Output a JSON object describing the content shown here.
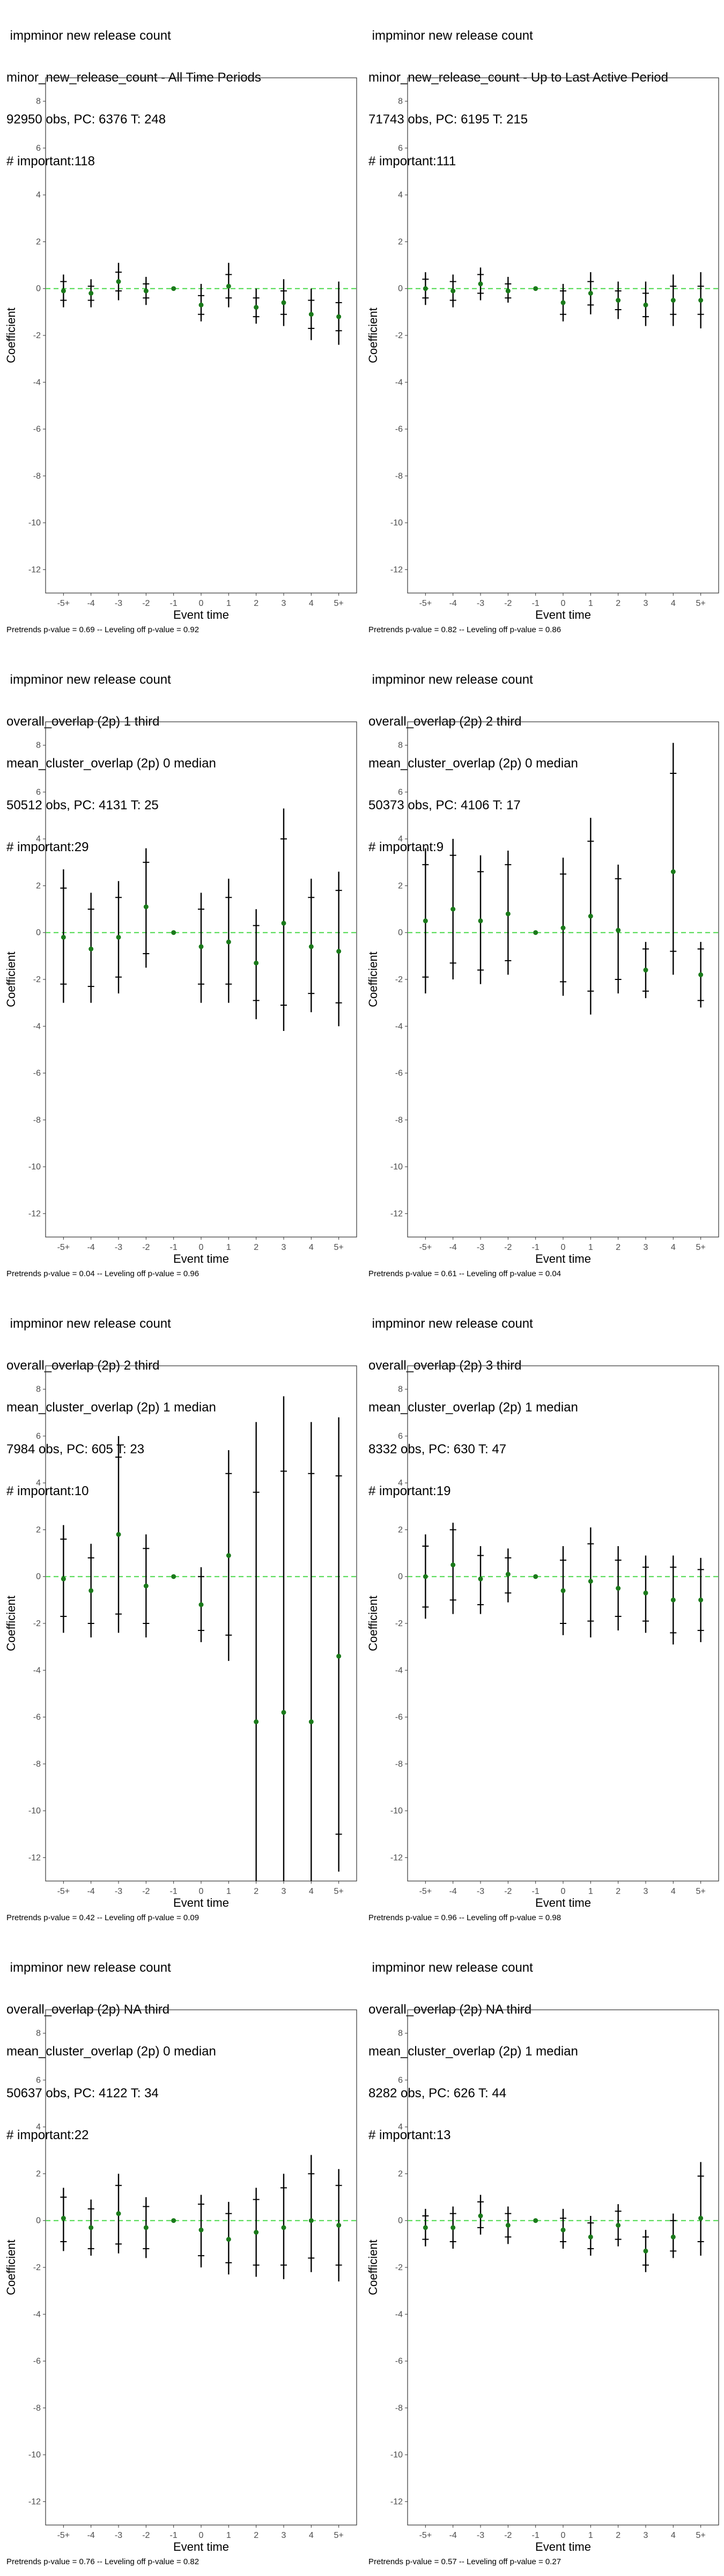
{
  "chart_data": [
    {
      "type": "scatter",
      "title_lines": [
        " impminor new release count",
        "minor_new_release_count - All Time Periods",
        "92950 obs, PC: 6376 T: 248",
        "# important:118"
      ],
      "xlabel": "Event time",
      "ylabel": "Coefficient",
      "categories": [
        "-5+",
        "-4",
        "-3",
        "-2",
        "-1",
        "0",
        "1",
        "2",
        "3",
        "4",
        "5+"
      ],
      "ylim": [
        -13,
        9
      ],
      "yticks": [
        8,
        6,
        4,
        2,
        0,
        -2,
        -4,
        -6,
        -8,
        -10,
        -12
      ],
      "reference_line": 0,
      "series": [
        {
          "estimate": [
            -0.1,
            -0.2,
            0.3,
            -0.1,
            0.0,
            -0.7,
            0.1,
            -0.8,
            -0.6,
            -1.1,
            -1.2
          ],
          "ci_low": [
            -0.8,
            -0.8,
            -0.5,
            -0.7,
            null,
            -1.4,
            -0.8,
            -1.5,
            -1.6,
            -2.2,
            -2.4
          ],
          "ci_high": [
            0.6,
            0.4,
            1.1,
            0.5,
            null,
            0.2,
            1.1,
            0.0,
            0.4,
            0.0,
            0.3
          ],
          "ci_inner_low": [
            -0.5,
            -0.5,
            -0.1,
            -0.4,
            null,
            -1.1,
            -0.4,
            -1.2,
            -1.1,
            -1.7,
            -1.8
          ],
          "ci_inner_high": [
            0.3,
            0.1,
            0.7,
            0.2,
            null,
            -0.3,
            0.6,
            -0.4,
            -0.1,
            -0.5,
            -0.6
          ]
        }
      ],
      "footnote": "Pretrends p-value = 0.69 -- Leveling off p-value = 0.92"
    },
    {
      "type": "scatter",
      "title_lines": [
        " impminor new release count",
        "minor_new_release_count - Up to Last Active Period",
        "71743 obs, PC: 6195 T: 215",
        "# important:111"
      ],
      "xlabel": "Event time",
      "ylabel": "Coefficient",
      "categories": [
        "-5+",
        "-4",
        "-3",
        "-2",
        "-1",
        "0",
        "1",
        "2",
        "3",
        "4",
        "5+"
      ],
      "ylim": [
        -13,
        9
      ],
      "yticks": [
        8,
        6,
        4,
        2,
        0,
        -2,
        -4,
        -6,
        -8,
        -10,
        -12
      ],
      "reference_line": 0,
      "series": [
        {
          "estimate": [
            0.0,
            -0.1,
            0.2,
            -0.1,
            0.0,
            -0.6,
            -0.2,
            -0.5,
            -0.7,
            -0.5,
            -0.5
          ],
          "ci_low": [
            -0.7,
            -0.8,
            -0.5,
            -0.6,
            null,
            -1.4,
            -1.1,
            -1.3,
            -1.6,
            -1.6,
            -1.7
          ],
          "ci_high": [
            0.7,
            0.6,
            0.9,
            0.5,
            null,
            0.2,
            0.7,
            0.3,
            0.3,
            0.6,
            0.7
          ],
          "ci_inner_low": [
            -0.4,
            -0.5,
            -0.2,
            -0.4,
            null,
            -1.1,
            -0.7,
            -0.9,
            -1.2,
            -1.1,
            -1.1
          ],
          "ci_inner_high": [
            0.4,
            0.3,
            0.6,
            0.2,
            null,
            -0.1,
            0.3,
            -0.1,
            -0.2,
            0.1,
            0.1
          ]
        }
      ],
      "footnote": "Pretrends p-value = 0.82 -- Leveling off p-value = 0.86"
    },
    {
      "type": "scatter",
      "title_lines": [
        " impminor new release count",
        "overall_overlap (2p) 1 third",
        "mean_cluster_overlap (2p) 0 median",
        "50512 obs, PC: 4131 T: 25",
        "# important:29"
      ],
      "xlabel": "Event time",
      "ylabel": "Coefficient",
      "categories": [
        "-5+",
        "-4",
        "-3",
        "-2",
        "-1",
        "0",
        "1",
        "2",
        "3",
        "4",
        "5+"
      ],
      "ylim": [
        -13,
        9
      ],
      "yticks": [
        8,
        6,
        4,
        2,
        0,
        -2,
        -4,
        -6,
        -8,
        -10,
        -12
      ],
      "reference_line": 0,
      "series": [
        {
          "estimate": [
            -0.2,
            -0.7,
            -0.2,
            1.1,
            0.0,
            -0.6,
            -0.4,
            -1.3,
            0.4,
            -0.6,
            -0.8
          ],
          "ci_low": [
            -3.0,
            -3.0,
            -2.6,
            -1.5,
            null,
            -3.0,
            -3.0,
            -3.7,
            -4.2,
            -3.4,
            -4.0
          ],
          "ci_high": [
            2.7,
            1.7,
            2.2,
            3.6,
            null,
            1.7,
            2.3,
            1.0,
            5.3,
            2.3,
            2.6
          ],
          "ci_inner_low": [
            -2.2,
            -2.3,
            -1.9,
            -0.9,
            null,
            -2.2,
            -2.2,
            -2.9,
            -3.1,
            -2.6,
            -3.0
          ],
          "ci_inner_high": [
            1.9,
            1.0,
            1.5,
            3.0,
            null,
            1.0,
            1.5,
            0.3,
            4.0,
            1.5,
            1.8
          ]
        }
      ],
      "footnote": "Pretrends p-value = 0.04 -- Leveling off p-value = 0.96"
    },
    {
      "type": "scatter",
      "title_lines": [
        " impminor new release count",
        "overall_overlap (2p) 2 third",
        "mean_cluster_overlap (2p) 0 median",
        "50373 obs, PC: 4106 T: 17",
        "# important:9"
      ],
      "xlabel": "Event time",
      "ylabel": "Coefficient",
      "categories": [
        "-5+",
        "-4",
        "-3",
        "-2",
        "-1",
        "0",
        "1",
        "2",
        "3",
        "4",
        "5+"
      ],
      "ylim": [
        -13,
        9
      ],
      "yticks": [
        8,
        6,
        4,
        2,
        0,
        -2,
        -4,
        -6,
        -8,
        -10,
        -12
      ],
      "reference_line": 0,
      "series": [
        {
          "estimate": [
            0.5,
            1.0,
            0.5,
            0.8,
            0.0,
            0.2,
            0.7,
            0.1,
            -1.6,
            2.6,
            -1.8
          ],
          "ci_low": [
            -2.6,
            -2.0,
            -2.2,
            -1.8,
            null,
            -2.7,
            -3.5,
            -2.6,
            -2.8,
            -1.8,
            -3.2
          ],
          "ci_high": [
            3.6,
            4.0,
            3.3,
            3.5,
            null,
            3.2,
            4.9,
            2.9,
            -0.4,
            8.1,
            -0.4
          ],
          "ci_inner_low": [
            -1.9,
            -1.3,
            -1.6,
            -1.2,
            null,
            -2.1,
            -2.5,
            -2.0,
            -2.5,
            -0.8,
            -2.9
          ],
          "ci_inner_high": [
            2.9,
            3.3,
            2.6,
            2.9,
            null,
            2.5,
            3.9,
            2.3,
            -0.7,
            6.8,
            -0.7
          ]
        }
      ],
      "footnote": "Pretrends p-value = 0.61 -- Leveling off p-value = 0.04"
    },
    {
      "type": "scatter",
      "title_lines": [
        " impminor new release count",
        "overall_overlap (2p) 2 third",
        "mean_cluster_overlap (2p) 1 median",
        "7984 obs, PC: 605 T: 23",
        "# important:10"
      ],
      "xlabel": "Event time",
      "ylabel": "Coefficient",
      "categories": [
        "-5+",
        "-4",
        "-3",
        "-2",
        "-1",
        "0",
        "1",
        "2",
        "3",
        "4",
        "5+"
      ],
      "ylim": [
        -13,
        9
      ],
      "yticks": [
        8,
        6,
        4,
        2,
        0,
        -2,
        -4,
        -6,
        -8,
        -10,
        -12
      ],
      "reference_line": 0,
      "series": [
        {
          "estimate": [
            -0.1,
            -0.6,
            1.8,
            -0.4,
            0.0,
            -1.2,
            0.9,
            -6.2,
            -5.8,
            -6.2,
            -3.4
          ],
          "ci_low": [
            -2.4,
            -2.6,
            -2.4,
            -2.6,
            null,
            -2.8,
            -3.6,
            -13.0,
            -13.0,
            -13.0,
            -12.6
          ],
          "ci_high": [
            2.2,
            1.4,
            6.0,
            1.8,
            null,
            0.4,
            5.4,
            6.6,
            7.7,
            6.6,
            6.8
          ],
          "ci_inner_low": [
            -1.7,
            -2.0,
            -1.6,
            -2.0,
            null,
            -2.3,
            -2.5,
            -13.0,
            -13.0,
            -13.0,
            -11.0
          ],
          "ci_inner_high": [
            1.6,
            0.8,
            5.1,
            1.2,
            null,
            0.0,
            4.4,
            3.6,
            4.5,
            4.4,
            4.3
          ]
        }
      ],
      "footnote": "Pretrends p-value = 0.42 -- Leveling off p-value = 0.09"
    },
    {
      "type": "scatter",
      "title_lines": [
        " impminor new release count",
        "overall_overlap (2p) 3 third",
        "mean_cluster_overlap (2p) 1 median",
        "8332 obs, PC: 630 T: 47",
        "# important:19"
      ],
      "xlabel": "Event time",
      "ylabel": "Coefficient",
      "categories": [
        "-5+",
        "-4",
        "-3",
        "-2",
        "-1",
        "0",
        "1",
        "2",
        "3",
        "4",
        "5+"
      ],
      "ylim": [
        -13,
        9
      ],
      "yticks": [
        8,
        6,
        4,
        2,
        0,
        -2,
        -4,
        -6,
        -8,
        -10,
        -12
      ],
      "reference_line": 0,
      "series": [
        {
          "estimate": [
            0.0,
            0.5,
            -0.1,
            0.1,
            0.0,
            -0.6,
            -0.2,
            -0.5,
            -0.7,
            -1.0,
            -1.0
          ],
          "ci_low": [
            -1.8,
            -1.6,
            -1.6,
            -1.1,
            null,
            -2.5,
            -2.6,
            -2.3,
            -2.4,
            -2.9,
            -2.8
          ],
          "ci_high": [
            1.8,
            2.3,
            1.3,
            1.2,
            null,
            1.3,
            2.1,
            1.3,
            0.9,
            0.9,
            0.8
          ],
          "ci_inner_low": [
            -1.3,
            -1.0,
            -1.2,
            -0.7,
            null,
            -2.0,
            -1.9,
            -1.7,
            -1.9,
            -2.4,
            -2.3
          ],
          "ci_inner_high": [
            1.3,
            2.0,
            0.9,
            0.8,
            null,
            0.7,
            1.4,
            0.7,
            0.4,
            0.4,
            0.3
          ]
        }
      ],
      "footnote": "Pretrends p-value = 0.96 -- Leveling off p-value = 0.98"
    },
    {
      "type": "scatter",
      "title_lines": [
        " impminor new release count",
        "overall_overlap (2p) NA third",
        "mean_cluster_overlap (2p) 0 median",
        "50637 obs, PC: 4122 T: 34",
        "# important:22"
      ],
      "xlabel": "Event time",
      "ylabel": "Coefficient",
      "categories": [
        "-5+",
        "-4",
        "-3",
        "-2",
        "-1",
        "0",
        "1",
        "2",
        "3",
        "4",
        "5+"
      ],
      "ylim": [
        -13,
        9
      ],
      "yticks": [
        8,
        6,
        4,
        2,
        0,
        -2,
        -4,
        -6,
        -8,
        -10,
        -12
      ],
      "reference_line": 0,
      "series": [
        {
          "estimate": [
            0.1,
            -0.3,
            0.3,
            -0.3,
            0.0,
            -0.4,
            -0.8,
            -0.5,
            -0.3,
            0.0,
            -0.2
          ],
          "ci_low": [
            -1.3,
            -1.5,
            -1.4,
            -1.6,
            null,
            -2.0,
            -2.3,
            -2.4,
            -2.5,
            -2.2,
            -2.6
          ],
          "ci_high": [
            1.4,
            0.9,
            2.0,
            1.0,
            null,
            1.1,
            0.8,
            1.4,
            2.0,
            2.8,
            2.2
          ],
          "ci_inner_low": [
            -0.9,
            -1.2,
            -1.0,
            -1.2,
            null,
            -1.5,
            -1.8,
            -1.9,
            -1.9,
            -1.6,
            -1.9
          ],
          "ci_inner_high": [
            1.0,
            0.5,
            1.5,
            0.6,
            null,
            0.7,
            0.3,
            0.9,
            1.4,
            2.0,
            1.5
          ]
        }
      ],
      "footnote": "Pretrends p-value = 0.76 -- Leveling off p-value = 0.82"
    },
    {
      "type": "scatter",
      "title_lines": [
        " impminor new release count",
        "overall_overlap (2p) NA third",
        "mean_cluster_overlap (2p) 1 median",
        "8282 obs, PC: 626 T: 44",
        "# important:13"
      ],
      "xlabel": "Event time",
      "ylabel": "Coefficient",
      "categories": [
        "-5+",
        "-4",
        "-3",
        "-2",
        "-1",
        "0",
        "1",
        "2",
        "3",
        "4",
        "5+"
      ],
      "ylim": [
        -13,
        9
      ],
      "yticks": [
        8,
        6,
        4,
        2,
        0,
        -2,
        -4,
        -6,
        -8,
        -10,
        -12
      ],
      "reference_line": 0,
      "series": [
        {
          "estimate": [
            -0.3,
            -0.3,
            0.2,
            -0.2,
            0.0,
            -0.4,
            -0.7,
            -0.2,
            -1.3,
            -0.7,
            0.1
          ],
          "ci_low": [
            -1.1,
            -1.2,
            -0.6,
            -1.0,
            null,
            -1.2,
            -1.5,
            -1.1,
            -2.2,
            -1.6,
            -1.5
          ],
          "ci_high": [
            0.5,
            0.6,
            1.1,
            0.6,
            null,
            0.5,
            0.2,
            0.7,
            -0.4,
            0.3,
            2.5
          ],
          "ci_inner_low": [
            -0.8,
            -0.9,
            -0.3,
            -0.7,
            null,
            -0.9,
            -1.2,
            -0.8,
            -1.9,
            -1.3,
            -0.9
          ],
          "ci_inner_high": [
            0.2,
            0.3,
            0.8,
            0.3,
            null,
            0.1,
            -0.1,
            0.4,
            -0.7,
            0.0,
            1.9
          ]
        }
      ],
      "footnote": "Pretrends p-value = 0.57 -- Leveling off p-value = 0.27"
    }
  ],
  "colors": {
    "point": "#1a7a1a",
    "reference_line": "#4cd94c",
    "error_bar": "#000000",
    "panel_border": "#333333",
    "tick_label": "#4d4d4d"
  }
}
